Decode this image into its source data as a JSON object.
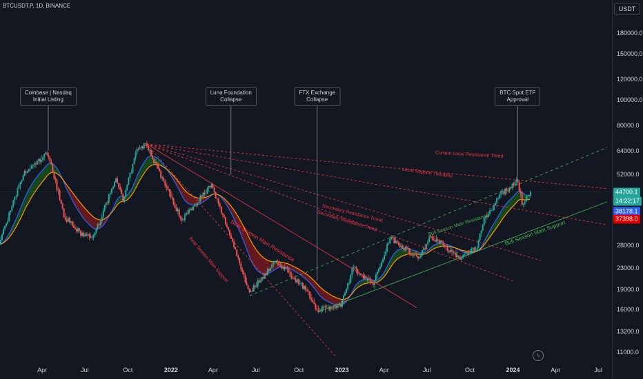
{
  "symbol_line": "BTCUSDT.P, 1D, BINANCE",
  "currency": "USDT",
  "price_axis": [
    "180000.0",
    "150000.0",
    "120000.0",
    "100000.0",
    "80000.0",
    "64000.0",
    "52000.0",
    "28000.0",
    "23000.0",
    "19000.0",
    "16000.0",
    "13200.0",
    "11000.0"
  ],
  "time_axis": [
    {
      "label": "Apr",
      "year": false
    },
    {
      "label": "Jul",
      "year": false
    },
    {
      "label": "Oct",
      "year": false
    },
    {
      "label": "2022",
      "year": true
    },
    {
      "label": "Apr",
      "year": false
    },
    {
      "label": "Jul",
      "year": false
    },
    {
      "label": "Oct",
      "year": false
    },
    {
      "label": "2023",
      "year": true
    },
    {
      "label": "Apr",
      "year": false
    },
    {
      "label": "Jul",
      "year": false
    },
    {
      "label": "Oct",
      "year": false
    },
    {
      "label": "2024",
      "year": true
    },
    {
      "label": "Apr",
      "year": false
    },
    {
      "label": "Jul",
      "year": false
    }
  ],
  "badges": {
    "last_price": "44700.1",
    "countdown": "14:22:17",
    "ma_fast": "38178.1",
    "ma_slow": "37398.0"
  },
  "events": [
    {
      "line1": "Coinbase | Nasdaq",
      "line2": "Initial Listing"
    },
    {
      "line1": "Luna Foundation",
      "line2": "Collapse"
    },
    {
      "line1": "FTX Exchange",
      "line2": "Collapse"
    },
    {
      "line1": "BTC Spot ETF",
      "line2": "Approval"
    }
  ],
  "trendlines": {
    "bear_resistance": "Bear Season Main Resistance",
    "bear_support": "Bear Season Main Support",
    "secondary_1": "Secondary Resistance Trend",
    "secondary_2": "Secondary Resistance Trend",
    "local_support": "Local Support Trendline",
    "current_local": "Current Local Resistance Trend",
    "bull_resistance": "Bull Season Main Resistance",
    "bull_support": "Bull Season Main Support"
  },
  "colors": {
    "up": "#26a69a",
    "down": "#ef5350",
    "last_price_badge": "#26a69a",
    "ma_fast_badge": "#2962ff",
    "ma_slow_badge": "#e00000",
    "resistance": "#f23645",
    "support": "#4caf50"
  },
  "chart_data": {
    "type": "candlestick",
    "symbol": "BTCUSDT.P",
    "interval": "1D",
    "exchange": "BINANCE",
    "y_scale": "log",
    "ylim": [
      9800,
      240000
    ],
    "xlim": [
      "2021-01-01",
      "2024-07-20"
    ],
    "grid": false,
    "key_prices": [
      {
        "date": "2021-01-01",
        "price": 29000
      },
      {
        "date": "2021-02-20",
        "price": 52000
      },
      {
        "date": "2021-04-14",
        "price": 63000
      },
      {
        "date": "2021-05-19",
        "price": 36000
      },
      {
        "date": "2021-06-22",
        "price": 31000
      },
      {
        "date": "2021-07-20",
        "price": 30000
      },
      {
        "date": "2021-09-07",
        "price": 51000
      },
      {
        "date": "2021-09-21",
        "price": 41000
      },
      {
        "date": "2021-10-20",
        "price": 64000
      },
      {
        "date": "2021-11-10",
        "price": 68000
      },
      {
        "date": "2022-01-24",
        "price": 35000
      },
      {
        "date": "2022-03-28",
        "price": 47500
      },
      {
        "date": "2022-05-10",
        "price": 30000
      },
      {
        "date": "2022-06-18",
        "price": 18500
      },
      {
        "date": "2022-08-14",
        "price": 24500
      },
      {
        "date": "2022-10-15",
        "price": 19200
      },
      {
        "date": "2022-11-09",
        "price": 16000
      },
      {
        "date": "2022-12-31",
        "price": 16500
      },
      {
        "date": "2023-01-25",
        "price": 23000
      },
      {
        "date": "2023-03-10",
        "price": 20000
      },
      {
        "date": "2023-04-14",
        "price": 30000
      },
      {
        "date": "2023-06-15",
        "price": 25000
      },
      {
        "date": "2023-07-10",
        "price": 30500
      },
      {
        "date": "2023-09-11",
        "price": 25000
      },
      {
        "date": "2023-10-16",
        "price": 27500
      },
      {
        "date": "2023-10-30",
        "price": 34500
      },
      {
        "date": "2023-12-08",
        "price": 44000
      },
      {
        "date": "2024-01-11",
        "price": 48900
      },
      {
        "date": "2024-01-23",
        "price": 39500
      },
      {
        "date": "2024-02-06",
        "price": 44700
      }
    ],
    "last_price": 44700.1,
    "moving_averages": [
      {
        "value": 38178.1
      },
      {
        "value": 37398.0
      }
    ],
    "annotations": [
      {
        "date": "2021-04-14",
        "text": "Coinbase | Nasdaq Initial Listing"
      },
      {
        "date": "2022-05-09",
        "text": "Luna Foundation Collapse"
      },
      {
        "date": "2022-11-09",
        "text": "FTX Exchange Collapse"
      },
      {
        "date": "2024-01-11",
        "text": "BTC Spot ETF Approval"
      }
    ]
  }
}
